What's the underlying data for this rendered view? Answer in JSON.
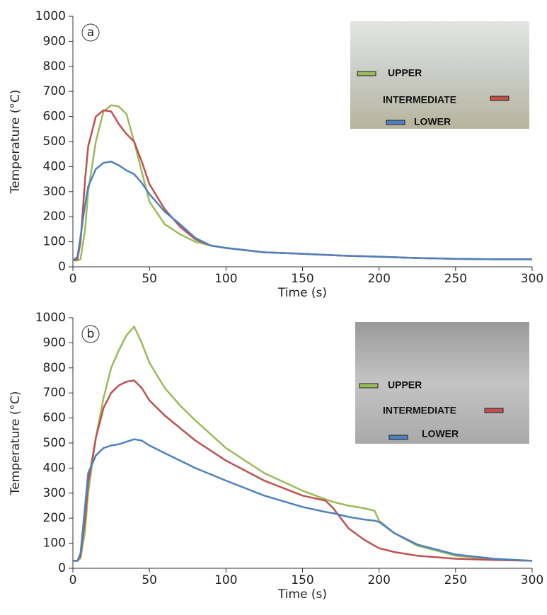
{
  "chart_data": [
    {
      "type": "line",
      "annotation": "a",
      "x_label": "Time (s)",
      "y_label": "Temperature (°C)",
      "xlim": [
        0,
        300
      ],
      "ylim": [
        0,
        1000
      ],
      "xticks": [
        0,
        50,
        100,
        150,
        200,
        250,
        300
      ],
      "yticks": [
        0,
        100,
        200,
        300,
        400,
        500,
        600,
        700,
        800,
        900,
        1000
      ],
      "x": [
        0,
        3,
        5,
        8,
        10,
        15,
        20,
        25,
        30,
        35,
        40,
        45,
        50,
        60,
        70,
        80,
        90,
        100,
        125,
        150,
        175,
        200,
        225,
        250,
        275,
        300
      ],
      "series": [
        {
          "name": "UPPER",
          "color": "#9bbb59",
          "values": [
            25,
            25,
            30,
            150,
            300,
            500,
            620,
            645,
            640,
            610,
            500,
            380,
            260,
            170,
            130,
            100,
            85,
            75,
            58,
            52,
            45,
            40,
            35,
            32,
            30,
            30
          ]
        },
        {
          "name": "INTERMEDIATE",
          "color": "#c0504d",
          "values": [
            25,
            30,
            100,
            350,
            480,
            600,
            625,
            620,
            570,
            530,
            500,
            420,
            330,
            230,
            160,
            110,
            85,
            75,
            58,
            52,
            45,
            40,
            35,
            32,
            30,
            30
          ]
        },
        {
          "name": "LOWER",
          "color": "#4f81bd",
          "values": [
            25,
            40,
            120,
            250,
            320,
            390,
            415,
            420,
            405,
            385,
            370,
            335,
            290,
            220,
            170,
            115,
            85,
            75,
            58,
            52,
            45,
            40,
            35,
            32,
            30,
            30
          ]
        }
      ]
    },
    {
      "type": "line",
      "annotation": "b",
      "x_label": "Time (s)",
      "y_label": "Temperature (°C)",
      "xlim": [
        0,
        300
      ],
      "ylim": [
        0,
        1000
      ],
      "xticks": [
        0,
        50,
        100,
        150,
        200,
        250,
        300
      ],
      "yticks": [
        0,
        100,
        200,
        300,
        400,
        500,
        600,
        700,
        800,
        900,
        1000
      ],
      "x": [
        0,
        3,
        5,
        8,
        10,
        15,
        20,
        25,
        30,
        35,
        40,
        45,
        50,
        60,
        70,
        80,
        100,
        125,
        150,
        165,
        170,
        180,
        190,
        197,
        200,
        210,
        225,
        250,
        275,
        300
      ],
      "series": [
        {
          "name": "UPPER",
          "color": "#9bbb59",
          "values": [
            30,
            30,
            40,
            150,
            300,
            520,
            680,
            800,
            870,
            930,
            965,
            900,
            820,
            720,
            650,
            590,
            480,
            380,
            310,
            275,
            265,
            250,
            240,
            230,
            190,
            140,
            90,
            50,
            35,
            30
          ]
        },
        {
          "name": "INTERMEDIATE",
          "color": "#c0504d",
          "values": [
            30,
            30,
            50,
            200,
            340,
            520,
            640,
            700,
            730,
            745,
            750,
            720,
            670,
            610,
            560,
            510,
            430,
            350,
            290,
            270,
            240,
            160,
            115,
            90,
            80,
            65,
            50,
            38,
            33,
            30
          ]
        },
        {
          "name": "LOWER",
          "color": "#4f81bd",
          "values": [
            30,
            30,
            60,
            250,
            380,
            450,
            480,
            490,
            495,
            505,
            515,
            510,
            490,
            460,
            430,
            400,
            350,
            290,
            245,
            225,
            220,
            205,
            195,
            190,
            185,
            140,
            95,
            55,
            38,
            30
          ]
        }
      ]
    }
  ]
}
